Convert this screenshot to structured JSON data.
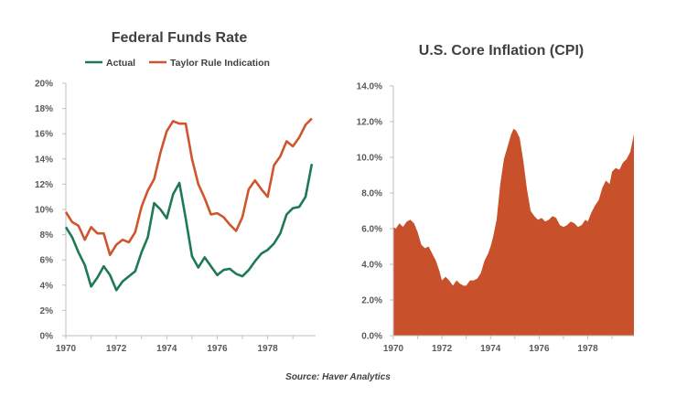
{
  "source": "Source: Haver Analytics",
  "colors": {
    "actual": "#1e7a52",
    "taylor": "#d0552e",
    "inflation": "#c8502a",
    "axis": "#bfbfbf"
  },
  "chart_data": [
    {
      "type": "line",
      "title": "Federal Funds Rate",
      "xlabel": "",
      "ylabel": "",
      "xlim": [
        1970,
        1979.9
      ],
      "ylim": [
        0,
        20
      ],
      "grid": false,
      "legend_placement": "top",
      "x_ticks": [
        1970,
        1972,
        1974,
        1976,
        1978
      ],
      "x_tick_labels": [
        "1970",
        "1972",
        "1974",
        "1976",
        "1978"
      ],
      "y_ticks": [
        0,
        2,
        4,
        6,
        8,
        10,
        12,
        14,
        16,
        18,
        20
      ],
      "y_tick_labels": [
        "0%",
        "2%",
        "4%",
        "6%",
        "8%",
        "10%",
        "12%",
        "14%",
        "16%",
        "18%",
        "20%"
      ],
      "series": [
        {
          "name": "Actual",
          "x": [
            1970,
            1970.25,
            1970.5,
            1970.75,
            1971,
            1971.25,
            1971.5,
            1971.75,
            1972,
            1972.25,
            1972.5,
            1972.75,
            1973,
            1973.25,
            1973.5,
            1973.75,
            1974,
            1974.25,
            1974.5,
            1974.75,
            1975,
            1975.25,
            1975.5,
            1975.75,
            1976,
            1976.25,
            1976.5,
            1976.75,
            1977,
            1977.25,
            1977.5,
            1977.75,
            1978,
            1978.25,
            1978.5,
            1978.75,
            1979,
            1979.25,
            1979.5,
            1979.75
          ],
          "values": [
            8.6,
            7.8,
            6.6,
            5.6,
            3.9,
            4.6,
            5.5,
            4.8,
            3.6,
            4.3,
            4.7,
            5.1,
            6.6,
            7.8,
            10.5,
            10.0,
            9.3,
            11.2,
            12.1,
            9.3,
            6.3,
            5.4,
            6.2,
            5.5,
            4.8,
            5.2,
            5.3,
            4.9,
            4.7,
            5.2,
            5.9,
            6.5,
            6.8,
            7.3,
            8.1,
            9.6,
            10.1,
            10.2,
            11.0,
            13.6
          ]
        },
        {
          "name": "Taylor Rule Indication",
          "x": [
            1970,
            1970.25,
            1970.5,
            1970.75,
            1971,
            1971.25,
            1971.5,
            1971.75,
            1972,
            1972.25,
            1972.5,
            1972.75,
            1973,
            1973.25,
            1973.5,
            1973.75,
            1974,
            1974.25,
            1974.5,
            1974.75,
            1975,
            1975.25,
            1975.5,
            1975.75,
            1976,
            1976.25,
            1976.5,
            1976.75,
            1977,
            1977.25,
            1977.5,
            1977.75,
            1978,
            1978.25,
            1978.5,
            1978.75,
            1979,
            1979.25,
            1979.5,
            1979.75
          ],
          "values": [
            9.8,
            9.0,
            8.7,
            7.6,
            8.6,
            8.1,
            8.1,
            6.4,
            7.2,
            7.6,
            7.4,
            8.2,
            10.2,
            11.5,
            12.4,
            14.5,
            16.2,
            17.0,
            16.8,
            16.8,
            14.0,
            12.0,
            10.9,
            9.6,
            9.7,
            9.4,
            8.8,
            8.3,
            9.4,
            11.6,
            12.3,
            11.6,
            11.0,
            13.5,
            14.2,
            15.4,
            15.0,
            15.7,
            16.7,
            17.2
          ]
        }
      ]
    },
    {
      "type": "area",
      "title": "U.S. Core Inflation (CPI)",
      "xlabel": "",
      "ylabel": "",
      "xlim": [
        1970,
        1979.9
      ],
      "ylim": [
        0,
        14
      ],
      "grid": false,
      "x_ticks": [
        1970,
        1972,
        1974,
        1976,
        1978
      ],
      "x_tick_labels": [
        "1970",
        "1972",
        "1974",
        "1976",
        "1978"
      ],
      "y_ticks": [
        0,
        2,
        4,
        6,
        8,
        10,
        12,
        14
      ],
      "y_tick_labels": [
        "0.0%",
        "2.0%",
        "4.0%",
        "6.0%",
        "8.0%",
        "10.0%",
        "12.0%",
        "14.0%"
      ],
      "series": [
        {
          "x": [
            1970,
            1970.1,
            1970.25,
            1970.4,
            1970.55,
            1970.7,
            1970.85,
            1971,
            1971.15,
            1971.3,
            1971.45,
            1971.6,
            1971.75,
            1971.9,
            1972,
            1972.15,
            1972.3,
            1972.45,
            1972.6,
            1972.75,
            1972.9,
            1973,
            1973.15,
            1973.3,
            1973.45,
            1973.6,
            1973.75,
            1973.9,
            1974,
            1974.1,
            1974.25,
            1974.4,
            1974.55,
            1974.7,
            1974.85,
            1974.95,
            1975.05,
            1975.2,
            1975.35,
            1975.5,
            1975.65,
            1975.8,
            1975.95,
            1976.1,
            1976.25,
            1976.4,
            1976.55,
            1976.7,
            1976.85,
            1977,
            1977.15,
            1977.3,
            1977.45,
            1977.6,
            1977.75,
            1977.9,
            1978,
            1978.15,
            1978.3,
            1978.45,
            1978.6,
            1978.75,
            1978.9,
            1979,
            1979.15,
            1979.3,
            1979.45,
            1979.6,
            1979.75,
            1979.9
          ],
          "values": [
            6.1,
            6.0,
            6.3,
            6.1,
            6.4,
            6.5,
            6.3,
            5.8,
            5.1,
            4.9,
            5.0,
            4.6,
            4.2,
            3.6,
            3.1,
            3.3,
            3.1,
            2.8,
            3.1,
            2.9,
            2.8,
            2.8,
            3.1,
            3.1,
            3.2,
            3.5,
            4.2,
            4.6,
            5.0,
            5.5,
            6.5,
            8.5,
            9.9,
            10.6,
            11.3,
            11.6,
            11.5,
            11.1,
            9.8,
            8.2,
            7.0,
            6.7,
            6.5,
            6.6,
            6.4,
            6.5,
            6.7,
            6.6,
            6.2,
            6.1,
            6.2,
            6.4,
            6.3,
            6.1,
            6.2,
            6.5,
            6.4,
            6.9,
            7.3,
            7.6,
            8.3,
            8.7,
            8.5,
            9.2,
            9.4,
            9.3,
            9.7,
            9.9,
            10.3,
            11.3
          ]
        }
      ]
    }
  ]
}
